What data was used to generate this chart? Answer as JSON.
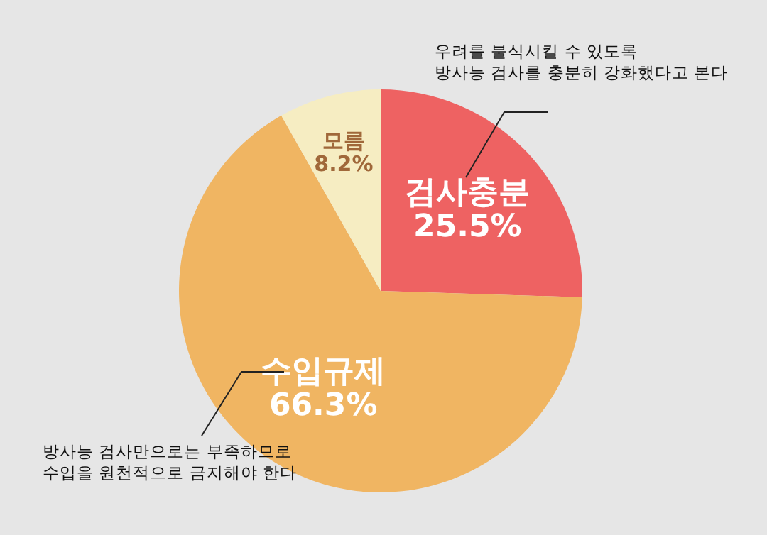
{
  "chart_data": {
    "type": "pie",
    "categories": [
      "검사충분",
      "수입규제",
      "모름"
    ],
    "values": [
      25.5,
      66.3,
      8.2
    ],
    "colors": [
      "#ee6262",
      "#f0b562",
      "#f6edc2"
    ],
    "value_labels": [
      "25.5%",
      "66.3%",
      "8.2%"
    ],
    "annotations": [
      "우려를 불식시킬 수 있도록\n방사능 검사를 충분히 강화했다고 본다",
      "방사능 검사만으로는 부족하므로\n수입을 원천적으로 금지해야 한다"
    ]
  }
}
